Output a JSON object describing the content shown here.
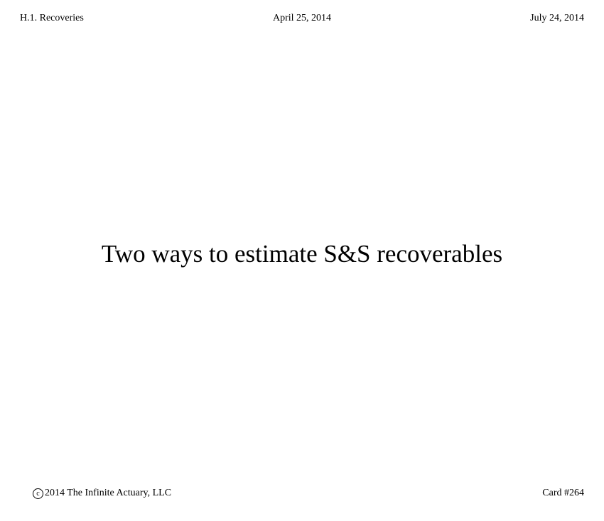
{
  "header": {
    "section": "H.1. Recoveries",
    "date_center": "April 25, 2014",
    "date_right": "July 24, 2014"
  },
  "card": {
    "title": "Two ways to estimate S&S recoverables"
  },
  "footer": {
    "copyright_symbol": "c",
    "copyright_text": "2014 The Infinite Actuary, LLC",
    "card_number": "Card #264"
  }
}
